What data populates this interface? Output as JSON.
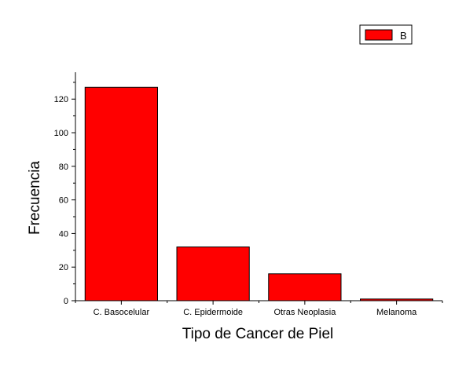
{
  "chart_data": {
    "type": "bar",
    "categories": [
      "C. Basocelular",
      "C. Epidermoide",
      "Otras Neoplasia",
      "Melanoma"
    ],
    "series": [
      {
        "name": "B",
        "values": [
          127,
          32,
          16,
          1
        ]
      }
    ],
    "xlabel": "Tipo de Cancer de Piel",
    "ylabel": "Frecuencia",
    "ylim": [
      0,
      136
    ],
    "yticks": [
      0,
      20,
      40,
      60,
      80,
      100,
      120
    ],
    "bar_color": "#ff0000",
    "legend_placement": "top-right",
    "grid": false
  }
}
